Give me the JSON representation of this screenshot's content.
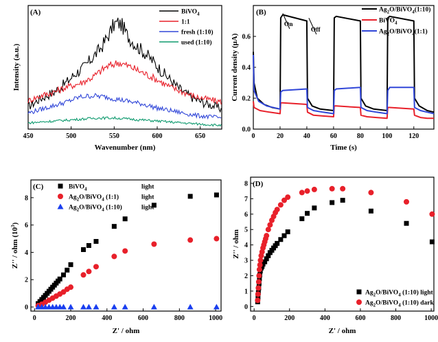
{
  "chart_data": [
    {
      "id": "A",
      "panel_label": "(A)",
      "type": "line",
      "xlabel": "Wavenumber (nm)",
      "ylabel": "Intensity (a.u.)",
      "xlim": [
        450,
        675
      ],
      "ylim": [
        0,
        100
      ],
      "xticks": [
        "450",
        "500",
        "550",
        "600",
        "650"
      ],
      "legend": [
        "BiVO",
        "1:1",
        "fresh  (1:10)",
        "used   (1:10)"
      ],
      "legend_subscripts": [
        "4",
        "",
        "",
        ""
      ],
      "series": [
        {
          "name": "BiVO4",
          "color": "#000000",
          "x": [
            450,
            465,
            480,
            495,
            505,
            515,
            525,
            535,
            545,
            550,
            555,
            560,
            565,
            575,
            585,
            595,
            605,
            615,
            625,
            635,
            645,
            655,
            665,
            675
          ],
          "y": [
            18,
            25,
            30,
            38,
            45,
            50,
            58,
            66,
            78,
            85,
            86,
            83,
            76,
            68,
            62,
            55,
            47,
            40,
            33,
            28,
            24,
            21,
            19,
            16
          ]
        },
        {
          "name": "1:1",
          "color": "#e8202a",
          "x": [
            450,
            465,
            480,
            495,
            510,
            525,
            540,
            555,
            570,
            585,
            600,
            615,
            630,
            645,
            660,
            675
          ],
          "y": [
            23,
            27,
            30,
            34,
            37,
            42,
            50,
            54,
            50,
            45,
            40,
            34,
            30,
            26,
            24,
            22
          ]
        },
        {
          "name": "fresh (1:10)",
          "color": "#3046d8",
          "x": [
            450,
            465,
            480,
            495,
            510,
            525,
            540,
            555,
            570,
            585,
            600,
            615,
            630,
            645,
            660,
            675
          ],
          "y": [
            13,
            16,
            19,
            22,
            26,
            27,
            26,
            24,
            22,
            20,
            17,
            15,
            13,
            11,
            10,
            9
          ]
        },
        {
          "name": "used (1:10)",
          "color": "#0e9a6e",
          "x": [
            450,
            470,
            490,
            510,
            530,
            550,
            570,
            590,
            610,
            630,
            650,
            675
          ],
          "y": [
            5,
            6,
            7,
            8,
            9,
            9,
            8,
            7,
            6,
            5,
            4,
            3
          ]
        }
      ]
    },
    {
      "id": "B",
      "panel_label": "(B)",
      "type": "line",
      "xlabel": "Time (s)",
      "ylabel": "Current density (μA)",
      "xlim": [
        0,
        135
      ],
      "ylim": [
        0,
        0.8
      ],
      "xticks": [
        "0",
        "20",
        "40",
        "60",
        "80",
        "100",
        "120"
      ],
      "yticks": [
        "0.0",
        "0.2",
        "0.4",
        "0.6"
      ],
      "annotations": [
        "On",
        "Off"
      ],
      "legend": [
        "Ag",
        "BiVO",
        "Ag"
      ],
      "legend_parts": [
        [
          "Ag",
          "2",
          "O/BiVO",
          "4",
          "(1:10)"
        ],
        [
          "BiVO",
          "4",
          "",
          "",
          ""
        ],
        [
          "Ag",
          "2",
          "O/BiVO",
          "4",
          "(1:1)"
        ]
      ],
      "series": [
        {
          "name": "Ag2O/BiVO4(1:10)",
          "color": "#000000",
          "x": [
            0,
            0.5,
            3,
            8,
            14,
            20,
            20.5,
            22,
            40,
            40.5,
            44,
            50,
            60,
            60.5,
            62,
            80,
            80.5,
            84,
            90,
            100,
            100.5,
            102,
            120,
            120.5,
            124,
            130,
            135
          ],
          "y": [
            0.5,
            0.3,
            0.2,
            0.16,
            0.14,
            0.13,
            0.72,
            0.74,
            0.7,
            0.2,
            0.15,
            0.13,
            0.12,
            0.72,
            0.73,
            0.7,
            0.2,
            0.15,
            0.13,
            0.12,
            0.72,
            0.73,
            0.7,
            0.2,
            0.15,
            0.12,
            0.11
          ]
        },
        {
          "name": "BiVO4",
          "color": "#e8202a",
          "x": [
            0,
            0.5,
            5,
            12,
            20,
            20.5,
            22,
            40,
            40.5,
            45,
            52,
            60,
            60.5,
            62,
            80,
            80.5,
            85,
            92,
            100,
            100.5,
            102,
            120,
            120.5,
            125,
            130,
            135
          ],
          "y": [
            0.18,
            0.14,
            0.12,
            0.11,
            0.1,
            0.17,
            0.17,
            0.16,
            0.11,
            0.09,
            0.085,
            0.08,
            0.15,
            0.15,
            0.14,
            0.09,
            0.08,
            0.075,
            0.07,
            0.14,
            0.14,
            0.13,
            0.09,
            0.075,
            0.07,
            0.07
          ]
        },
        {
          "name": "Ag2O/BiVO4(1:1)",
          "color": "#3046d8",
          "x": [
            0,
            0.5,
            4,
            10,
            20,
            20.5,
            22,
            40,
            40.5,
            45,
            52,
            60,
            60.5,
            62,
            80,
            80.5,
            85,
            92,
            100,
            100.5,
            102,
            120,
            120.5,
            125,
            130,
            135
          ],
          "y": [
            0.48,
            0.25,
            0.18,
            0.15,
            0.13,
            0.24,
            0.25,
            0.26,
            0.14,
            0.12,
            0.11,
            0.1,
            0.25,
            0.26,
            0.27,
            0.14,
            0.12,
            0.11,
            0.1,
            0.25,
            0.27,
            0.27,
            0.14,
            0.12,
            0.11,
            0.1
          ]
        }
      ]
    },
    {
      "id": "C",
      "panel_label": "(C)",
      "type": "scatter",
      "xlabel": "Z' / ohm",
      "ylabel": "Z'' / ohm (10",
      "ylabel_exp": "3",
      "xlim": [
        -20,
        1030
      ],
      "ylim": [
        -0.3,
        9.3
      ],
      "xticks": [
        "0",
        "200",
        "400",
        "600",
        "800",
        "1000"
      ],
      "yticks": [
        "0",
        "2",
        "4",
        "6",
        "8"
      ],
      "legend_parts": [
        [
          "BiVO",
          "4",
          "",
          "",
          "",
          "light"
        ],
        [
          "Ag",
          "2",
          "O/BiVO",
          "4",
          " (1:1)",
          "light"
        ],
        [
          "Ag",
          "2",
          "O/BiVO",
          "4",
          " (1:10)",
          "light"
        ]
      ],
      "series": [
        {
          "name": "BiVO4 light",
          "color": "#000000",
          "marker": "square",
          "x": [
            20,
            30,
            40,
            50,
            60,
            70,
            80,
            90,
            100,
            110,
            120,
            130,
            140,
            160,
            180,
            200,
            270,
            300,
            340,
            440,
            500,
            660,
            860,
            1005
          ],
          "y": [
            0.25,
            0.4,
            0.55,
            0.7,
            0.85,
            1.0,
            1.15,
            1.3,
            1.45,
            1.6,
            1.75,
            1.9,
            2.05,
            2.35,
            2.7,
            3.1,
            4.2,
            4.5,
            4.8,
            5.9,
            6.45,
            7.45,
            8.1,
            8.2
          ]
        },
        {
          "name": "Ag2O/BiVO4 (1:1) light",
          "color": "#e8202a",
          "marker": "circle",
          "x": [
            20,
            40,
            60,
            80,
            100,
            120,
            140,
            160,
            180,
            200,
            270,
            300,
            340,
            440,
            500,
            660,
            860,
            1005
          ],
          "y": [
            0.1,
            0.2,
            0.35,
            0.5,
            0.65,
            0.8,
            0.95,
            1.1,
            1.3,
            1.45,
            2.35,
            2.6,
            2.95,
            3.7,
            4.1,
            4.6,
            4.9,
            5.0
          ]
        },
        {
          "name": "Ag2O/BiVO4 (1:10) light",
          "color": "#1a3ff0",
          "marker": "triangle",
          "x": [
            20,
            40,
            60,
            80,
            100,
            120,
            140,
            160,
            200,
            270,
            300,
            340,
            440,
            500,
            660,
            860,
            1005
          ],
          "y": [
            0,
            0,
            0,
            0,
            0,
            0,
            0,
            0,
            0,
            0,
            0,
            0,
            0,
            0,
            0,
            0,
            0
          ]
        }
      ]
    },
    {
      "id": "D",
      "panel_label": "(D)",
      "type": "scatter",
      "xlabel": "Z' / ohm",
      "ylabel": "Z'' / ohm",
      "xlim": [
        -20,
        1015
      ],
      "ylim": [
        -0.3,
        8.4
      ],
      "xticks": [
        "0",
        "200",
        "400",
        "600",
        "800",
        "1000"
      ],
      "yticks": [
        "0",
        "1",
        "2",
        "3",
        "4",
        "5",
        "6",
        "7",
        "8"
      ],
      "legend_parts": [
        [
          "Ag",
          "2",
          "O/BiVO",
          "4",
          " (1:10) light"
        ],
        [
          "Ag",
          "2",
          "O/BiVO",
          "4",
          " (1:10) dark"
        ]
      ],
      "series": [
        {
          "name": "Ag2O/BiVO4 (1:10) light",
          "color": "#000000",
          "marker": "square",
          "x": [
            20,
            22,
            24,
            26,
            28,
            30,
            32,
            35,
            40,
            45,
            50,
            60,
            70,
            80,
            90,
            100,
            110,
            120,
            130,
            150,
            170,
            190,
            270,
            300,
            340,
            440,
            500,
            660,
            860,
            1005
          ],
          "y": [
            0.3,
            0.6,
            0.9,
            1.2,
            1.5,
            1.8,
            2.05,
            2.3,
            2.5,
            2.6,
            2.75,
            2.9,
            3.1,
            3.3,
            3.5,
            3.65,
            3.8,
            3.95,
            4.1,
            4.35,
            4.6,
            4.85,
            5.7,
            6.05,
            6.4,
            6.75,
            6.9,
            6.2,
            5.4,
            4.2
          ]
        },
        {
          "name": "Ag2O/BiVO4 (1:10) dark",
          "color": "#e8202a",
          "marker": "circle",
          "x": [
            20,
            22,
            24,
            26,
            28,
            30,
            33,
            36,
            40,
            45,
            50,
            55,
            60,
            65,
            70,
            80,
            90,
            100,
            110,
            120,
            130,
            150,
            170,
            190,
            270,
            300,
            340,
            440,
            500,
            660,
            860,
            1005
          ],
          "y": [
            0.4,
            0.8,
            1.2,
            1.6,
            2.0,
            2.4,
            2.7,
            3.0,
            3.3,
            3.55,
            3.8,
            4.0,
            4.2,
            4.4,
            4.6,
            5.0,
            5.3,
            5.6,
            5.85,
            6.1,
            6.3,
            6.6,
            6.9,
            7.1,
            7.4,
            7.5,
            7.6,
            7.65,
            7.65,
            7.4,
            6.8,
            6.0
          ]
        }
      ]
    }
  ]
}
